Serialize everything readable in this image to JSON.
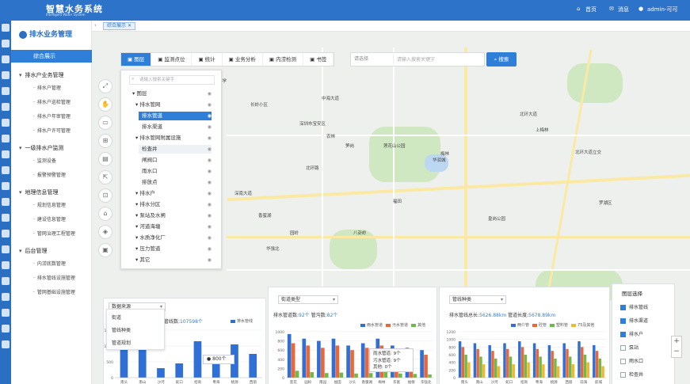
{
  "app": {
    "title": "智慧水务系统",
    "subtitle": "Intelligent Water System",
    "nav_home": "首页",
    "nav_msg": "消息",
    "user": "admin-可可"
  },
  "sidebar": {
    "title": "排水业务管理",
    "overview": "综合展示",
    "groups": [
      {
        "label": "排水户业务管理",
        "items": [
          "排水户管理",
          "排水户巡检管理",
          "排水户年审管理",
          "排水户许可管理"
        ]
      },
      {
        "label": "一级排水户监测",
        "items": [
          "监测设备",
          "报警预警管理"
        ]
      },
      {
        "label": "地理信息管理",
        "items": [
          "规划信息管理",
          "建设信息管理",
          "管网治理工程管理"
        ]
      },
      {
        "label": "后台管理",
        "items": [
          "内涝底数管理",
          "排水管线设施管理",
          "管网基础设施管理"
        ]
      }
    ]
  },
  "tab": {
    "active": "综合展示"
  },
  "toolbar": {
    "items": [
      "图层",
      "监测点位",
      "统计",
      "业务分析",
      "内涝检测",
      "书签"
    ],
    "active": 0
  },
  "search": {
    "select": "请选择",
    "placeholder": "请输入搜索关键字",
    "button": "搜索"
  },
  "layers": {
    "placeholder": "请输入搜索关键字",
    "items": [
      {
        "label": "图层",
        "level": 0
      },
      {
        "label": "排水管网",
        "level": 1
      },
      {
        "label": "排水管道",
        "level": 2,
        "selected": true
      },
      {
        "label": "排水渠道",
        "level": 2
      },
      {
        "label": "排水管网附属设施",
        "level": 1
      },
      {
        "label": "检查井",
        "level": 2,
        "hover": true
      },
      {
        "label": "闸阀口",
        "level": 2
      },
      {
        "label": "雨水口",
        "level": 2
      },
      {
        "label": "排放点",
        "level": 2
      },
      {
        "label": "排水户",
        "level": 1
      },
      {
        "label": "排水分区",
        "level": 1
      },
      {
        "label": "泵站及水闸",
        "level": 1
      },
      {
        "label": "河道海塘",
        "level": 1
      },
      {
        "label": "水质净化厂",
        "level": 1
      },
      {
        "label": "压力管道",
        "level": 1
      },
      {
        "label": "其它",
        "level": 1
      }
    ]
  },
  "map_labels": [
    "一宗大厦",
    "白云小学",
    "中海大道",
    "长岭小区",
    "深圳市宝安区",
    "北环大道",
    "莲花山公园",
    "北环路",
    "笋岗",
    "深南大道",
    "香蜜湖",
    "农林",
    "上梅林",
    "梅林",
    "北环大道立交",
    "福田",
    "华润城",
    "皇岗公园",
    "园岭",
    "八卦岭",
    "华强北",
    "罗湖区"
  ],
  "panel1": {
    "dropdown": "数据来源",
    "options": [
      "街道",
      "管线种类",
      "管道规划"
    ],
    "stat_label": "管线数:",
    "stat_value": "107598个",
    "legend": "排水管线",
    "tooltip": "800个",
    "chart_data": {
      "type": "bar",
      "categories": [
        "南头",
        "南山",
        "沙河",
        "蛇口",
        "招商",
        "粤海",
        "桃源",
        "西丽"
      ],
      "values": [
        1200,
        950,
        300,
        450,
        1150,
        650,
        1050,
        750
      ],
      "ylim": [
        0,
        1500
      ]
    }
  },
  "panel2": {
    "dropdown": "街道类型",
    "stat_label": "排水管道数:",
    "stat_value": "92个",
    "stat2_label": "管沟数:",
    "stat2_value": "82个",
    "tooltip": [
      "雨水管道: 9个",
      "污水管道: 9个",
      "其他: 0个"
    ],
    "chart_data": {
      "type": "bar",
      "categories": [
        "莲花",
        "园岭",
        "南园",
        "福田",
        "沙头",
        "香蜜湖",
        "梅林",
        "华富",
        "福保",
        "华强北"
      ],
      "series": [
        {
          "name": "雨水管道",
          "values": [
            950,
            850,
            800,
            850,
            700,
            750,
            850,
            700,
            650,
            600
          ]
        },
        {
          "name": "污水管道",
          "values": [
            750,
            700,
            650,
            700,
            600,
            650,
            700,
            600,
            550,
            500
          ]
        },
        {
          "name": "其他",
          "values": [
            150,
            120,
            100,
            110,
            90,
            100,
            120,
            90,
            80,
            70
          ]
        }
      ],
      "ylim": [
        0,
        1000
      ]
    }
  },
  "panel3": {
    "dropdown": "管线种类",
    "stat_label": "排水管线总长:",
    "stat_value": "5626.88km",
    "stat2_label": "管道长度:",
    "stat2_value": "5678.89km",
    "chart_data": {
      "type": "bar",
      "categories": [
        "南头",
        "南山",
        "沙河",
        "蛇口",
        "招商",
        "粤海",
        "桃源",
        "西丽",
        "前海",
        "航城"
      ],
      "series": [
        {
          "name": "两介管",
          "values": [
            950,
            900,
            850,
            900,
            950,
            900,
            850,
            900,
            950,
            850
          ]
        },
        {
          "name": "砼管",
          "values": [
            800,
            750,
            700,
            750,
            800,
            750,
            700,
            750,
            800,
            700
          ]
        },
        {
          "name": "塑料管",
          "values": [
            600,
            550,
            500,
            550,
            600,
            550,
            500,
            550,
            600,
            500
          ]
        },
        {
          "name": "75及其他",
          "values": [
            400,
            350,
            300,
            350,
            400,
            350,
            300,
            350,
            400,
            300
          ]
        }
      ],
      "ylim": [
        0,
        1200
      ]
    }
  },
  "layer_select": {
    "title": "图层选择",
    "items": [
      {
        "label": "排水管线",
        "checked": true
      },
      {
        "label": "排水渠道",
        "checked": true
      },
      {
        "label": "排水户",
        "checked": true
      },
      {
        "label": "泵站",
        "checked": false
      },
      {
        "label": "雨水口",
        "checked": false
      },
      {
        "label": "检查井",
        "checked": false
      }
    ]
  },
  "colors": {
    "primary": "#2f7fd8",
    "header": "#2c73c9",
    "series": [
      "#2f6fd6",
      "#e8683a",
      "#6fb84a",
      "#f2b632"
    ]
  }
}
